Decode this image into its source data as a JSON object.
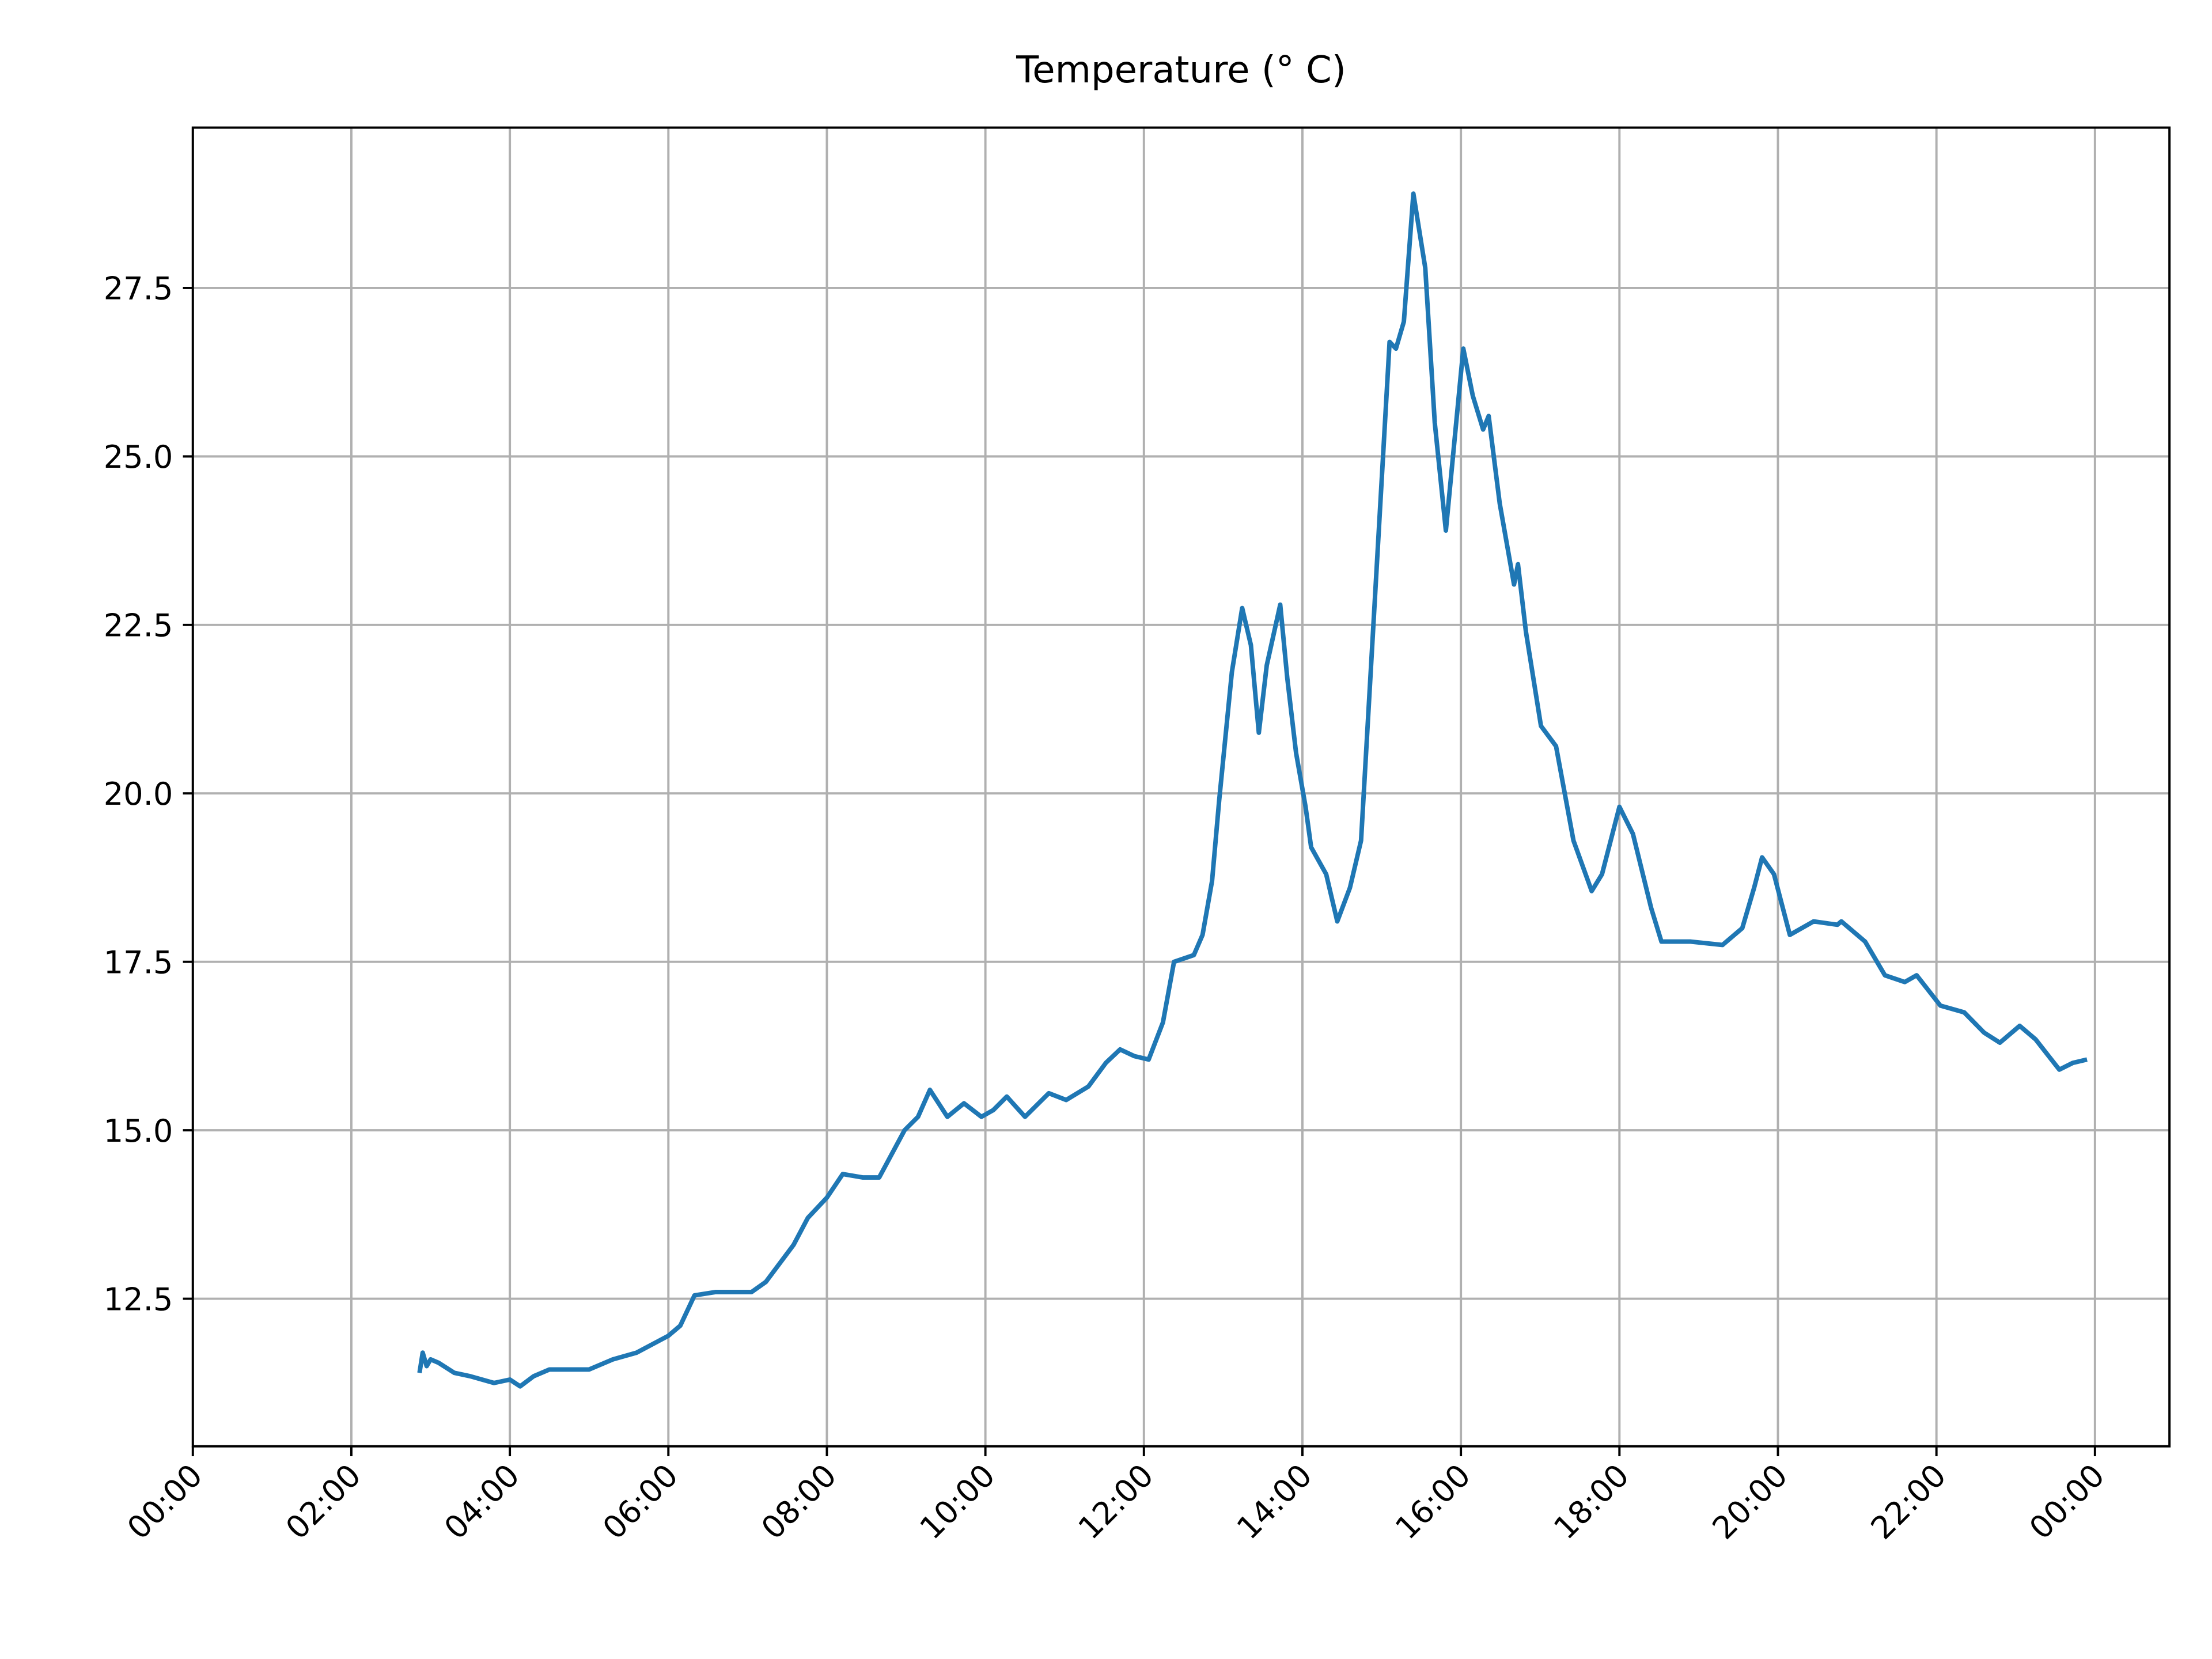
{
  "chart_data": {
    "type": "line",
    "title": "Temperature (° C)",
    "x": [
      2.86,
      2.9,
      2.95,
      3.0,
      3.1,
      3.3,
      3.5,
      3.8,
      4.0,
      4.13,
      4.3,
      4.5,
      4.8,
      5.0,
      5.3,
      5.6,
      6.0,
      6.15,
      6.33,
      6.6,
      7.05,
      7.23,
      7.58,
      7.76,
      8.0,
      8.2,
      8.45,
      8.66,
      8.98,
      9.15,
      9.3,
      9.52,
      9.73,
      9.95,
      10.1,
      10.27,
      10.5,
      10.8,
      11.02,
      11.3,
      11.52,
      11.7,
      11.88,
      12.06,
      12.24,
      12.38,
      12.63,
      12.74,
      12.86,
      12.95,
      13.11,
      13.24,
      13.35,
      13.45,
      13.55,
      13.72,
      13.81,
      13.92,
      14.04,
      14.11,
      14.3,
      14.44,
      14.6,
      14.74,
      14.92,
      15.1,
      15.18,
      15.28,
      15.4,
      15.55,
      15.67,
      15.81,
      16.03,
      16.15,
      16.28,
      16.35,
      16.49,
      16.67,
      16.72,
      16.82,
      17.01,
      17.2,
      17.42,
      17.65,
      17.78,
      18.0,
      18.17,
      18.4,
      18.53,
      18.9,
      19.3,
      19.55,
      19.7,
      19.8,
      19.95,
      20.15,
      20.45,
      20.75,
      20.8,
      21.1,
      21.35,
      21.6,
      21.75,
      22.05,
      22.35,
      22.6,
      22.8,
      23.05,
      23.25,
      23.55,
      23.72,
      23.9
    ],
    "series": [
      {
        "name": "Temperature",
        "color": "#1f77b4",
        "values": [
          11.4,
          11.7,
          11.5,
          11.6,
          11.55,
          11.4,
          11.35,
          11.25,
          11.3,
          11.2,
          11.35,
          11.45,
          11.45,
          11.45,
          11.6,
          11.7,
          11.95,
          12.1,
          12.55,
          12.6,
          12.6,
          12.75,
          13.3,
          13.7,
          14.0,
          14.35,
          14.3,
          14.3,
          15.0,
          15.2,
          15.6,
          15.2,
          15.4,
          15.2,
          15.3,
          15.5,
          15.2,
          15.55,
          15.45,
          15.65,
          16.0,
          16.2,
          16.1,
          16.05,
          16.6,
          17.5,
          17.6,
          17.9,
          18.7,
          19.9,
          21.8,
          22.75,
          22.2,
          20.9,
          21.9,
          22.8,
          21.7,
          20.6,
          19.8,
          19.2,
          18.8,
          18.1,
          18.6,
          19.3,
          23.0,
          26.7,
          26.6,
          27.0,
          28.9,
          27.8,
          25.5,
          23.9,
          26.6,
          25.9,
          25.4,
          25.6,
          24.3,
          23.1,
          23.4,
          22.4,
          21.0,
          20.7,
          19.3,
          18.55,
          18.8,
          19.8,
          19.4,
          18.3,
          17.8,
          17.8,
          17.75,
          18.0,
          18.6,
          19.05,
          18.8,
          17.9,
          18.1,
          18.05,
          18.1,
          17.8,
          17.3,
          17.2,
          17.3,
          16.85,
          16.75,
          16.45,
          16.3,
          16.55,
          16.35,
          15.9,
          16.0,
          16.05
        ]
      }
    ],
    "xlim": [
      0,
      24.94
    ],
    "xticks": [
      {
        "value": 0,
        "label": "00:00"
      },
      {
        "value": 2,
        "label": "02:00"
      },
      {
        "value": 4,
        "label": "04:00"
      },
      {
        "value": 6,
        "label": "06:00"
      },
      {
        "value": 8,
        "label": "08:00"
      },
      {
        "value": 10,
        "label": "10:00"
      },
      {
        "value": 12,
        "label": "12:00"
      },
      {
        "value": 14,
        "label": "14:00"
      },
      {
        "value": 16,
        "label": "16:00"
      },
      {
        "value": 18,
        "label": "18:00"
      },
      {
        "value": 20,
        "label": "20:00"
      },
      {
        "value": 22,
        "label": "22:00"
      },
      {
        "value": 24,
        "label": "00:00"
      }
    ],
    "ylim": [
      10.31,
      29.88
    ],
    "yticks": [
      {
        "value": 12.5,
        "label": "12.5"
      },
      {
        "value": 15,
        "label": "15.0"
      },
      {
        "value": 17.5,
        "label": "17.5"
      },
      {
        "value": 20,
        "label": "20.0"
      },
      {
        "value": 22.5,
        "label": "22.5"
      },
      {
        "value": 25,
        "label": "25.0"
      },
      {
        "value": 27.5,
        "label": "27.5"
      }
    ],
    "grid": true
  }
}
